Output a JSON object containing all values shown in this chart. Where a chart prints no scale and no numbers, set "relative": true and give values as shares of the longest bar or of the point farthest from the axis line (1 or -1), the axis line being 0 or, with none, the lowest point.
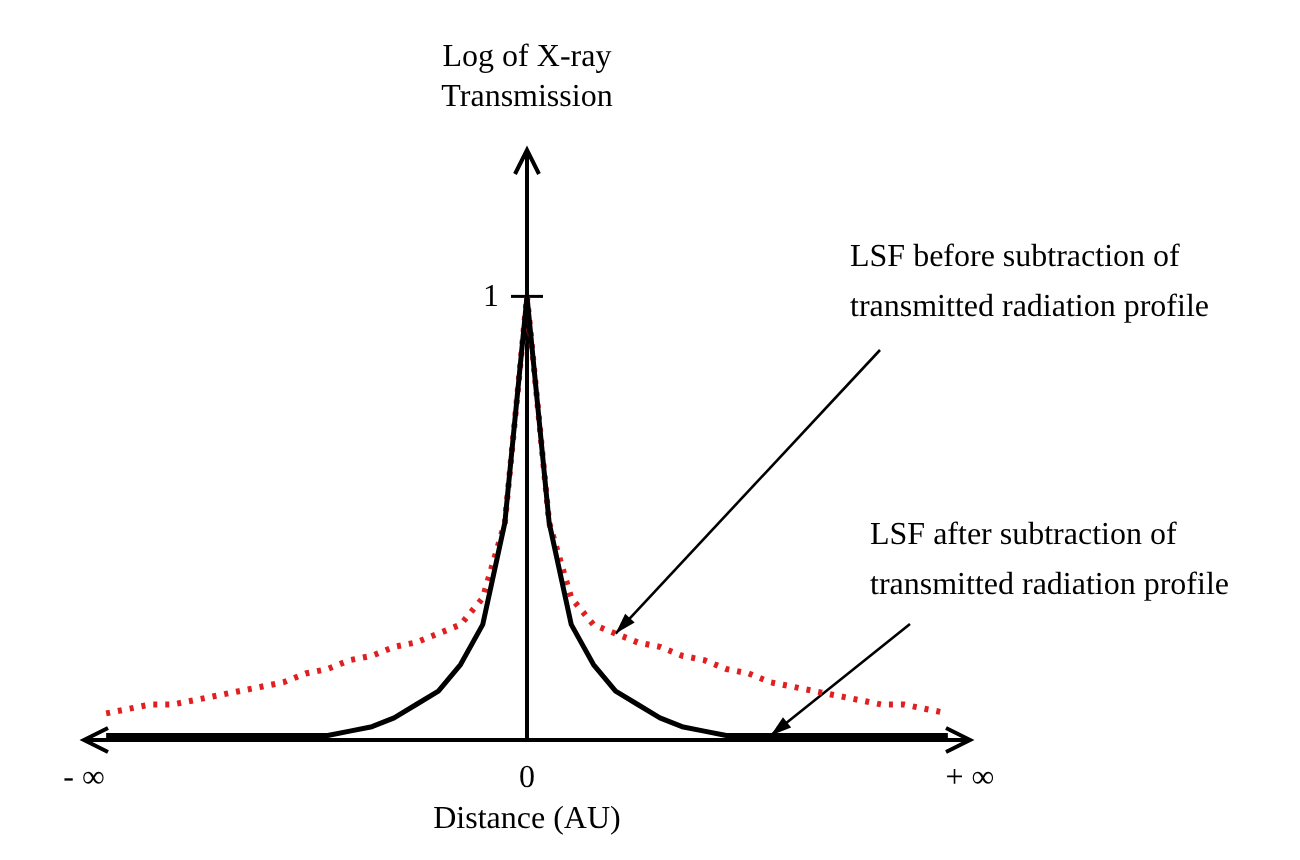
{
  "chart_data": {
    "type": "line",
    "relative": true,
    "xlabel": "Distance (AU)",
    "categories": [
      "- ∞",
      null,
      null,
      null,
      null,
      null,
      null,
      null,
      null,
      null,
      null,
      null,
      null,
      null,
      null,
      null,
      null,
      null,
      null,
      null,
      "0",
      null,
      null,
      null,
      null,
      null,
      null,
      null,
      null,
      null,
      null,
      null,
      null,
      null,
      null,
      null,
      null,
      null,
      null,
      null,
      "+ ∞"
    ],
    "series": [
      {
        "color": "#e02020",
        "line_style": "dotted",
        "values": [
          null,
          0.06,
          0.07,
          0.08,
          0.08,
          0.09,
          0.1,
          0.11,
          0.12,
          0.13,
          0.15,
          0.16,
          0.18,
          0.19,
          0.21,
          0.22,
          0.24,
          0.26,
          0.32,
          0.49,
          1,
          0.49,
          0.32,
          0.26,
          0.24,
          0.22,
          0.21,
          0.19,
          0.18,
          0.16,
          0.15,
          0.13,
          0.12,
          0.11,
          0.1,
          0.09,
          0.08,
          0.08,
          0.07,
          0.06,
          null
        ]
      },
      {
        "color": "#000000",
        "line_style": "solid",
        "values": [
          null,
          0.01,
          0.01,
          0.01,
          0.01,
          0.01,
          0.01,
          0.01,
          0.01,
          0.01,
          0.01,
          0.01,
          0.02,
          0.03,
          0.05,
          0.08,
          0.11,
          0.17,
          0.26,
          0.49,
          1,
          0.49,
          0.26,
          0.17,
          0.11,
          0.08,
          0.05,
          0.03,
          0.02,
          0.01,
          0.01,
          0.01,
          0.01,
          0.01,
          0.01,
          0.01,
          0.01,
          0.01,
          0.01,
          0.01,
          null
        ]
      }
    ],
    "annotations": [
      "1",
      "LSF before subtraction of transmitted radiation profile",
      "LSF after subtraction of transmitted radiation profile",
      "Log of X-ray Transmission"
    ]
  }
}
